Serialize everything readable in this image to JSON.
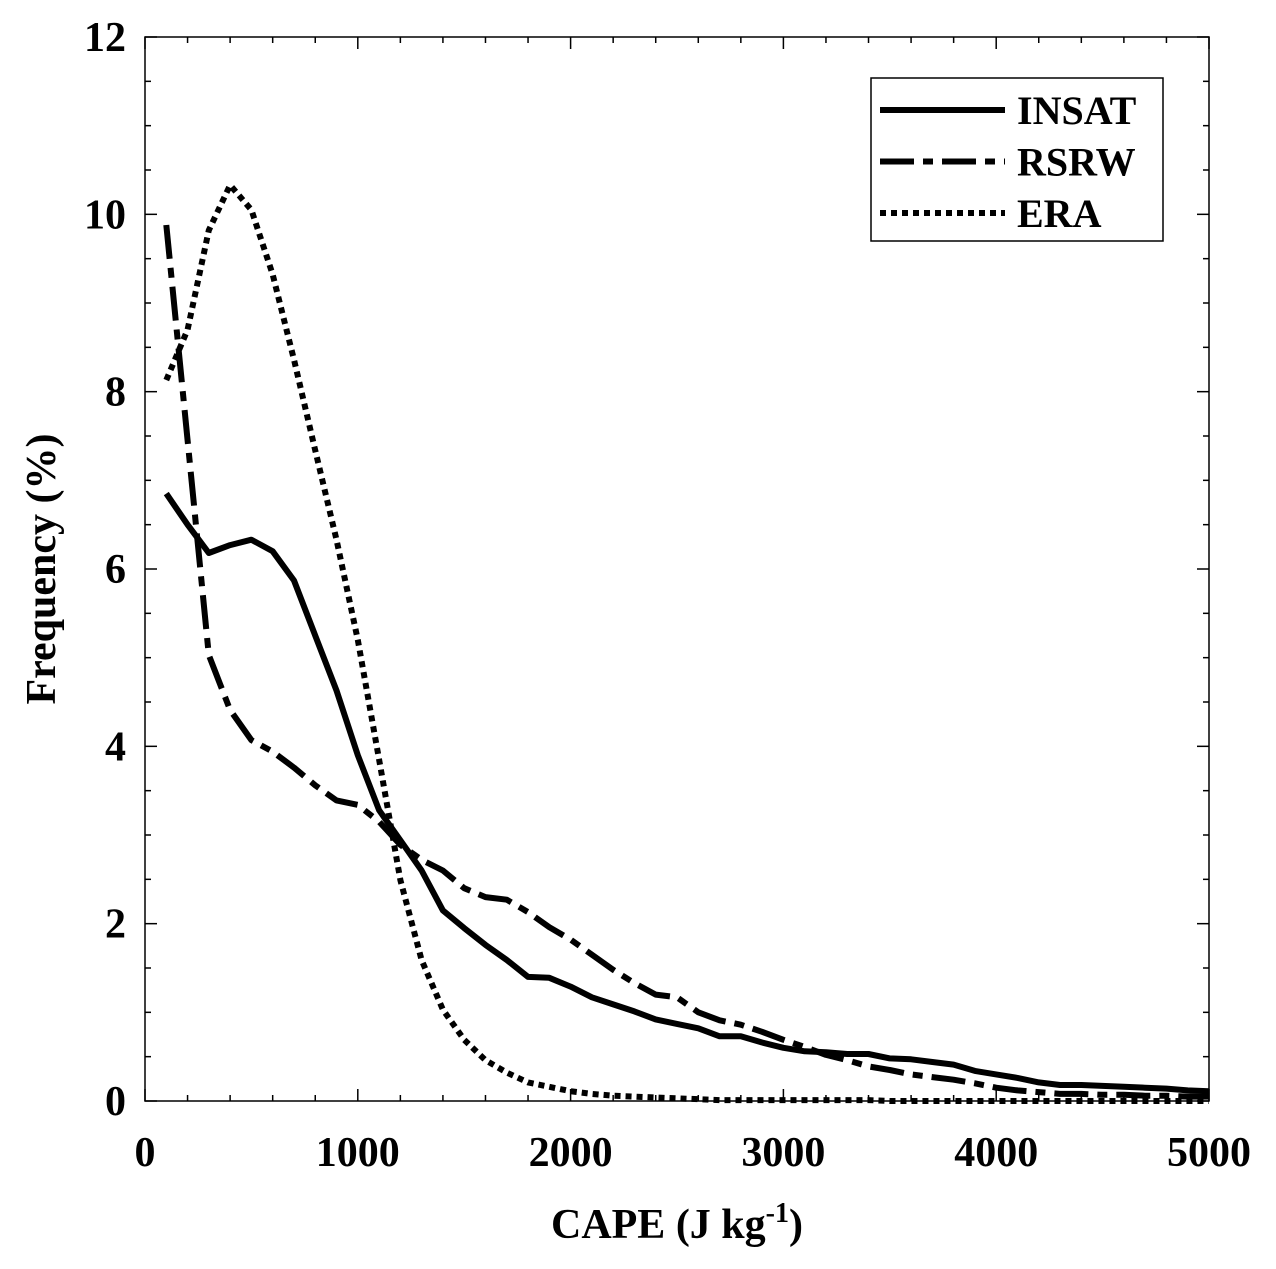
{
  "chart_data": {
    "type": "line",
    "title": "",
    "xlabel": "CAPE (J kg",
    "xlabel_sup": "-1",
    "xlabel_end": ")",
    "ylabel": "Frequency (%)",
    "xlim": [
      0,
      5000
    ],
    "ylim": [
      0,
      12
    ],
    "xticks": [
      0,
      1000,
      2000,
      3000,
      4000,
      5000
    ],
    "yticks": [
      0,
      2,
      4,
      6,
      8,
      10,
      12
    ],
    "grid": false,
    "legend_placement": "top-right",
    "x": [
      100,
      200,
      300,
      400,
      500,
      600,
      700,
      800,
      900,
      1000,
      1100,
      1200,
      1300,
      1400,
      1500,
      1600,
      1700,
      1800,
      1900,
      2000,
      2100,
      2200,
      2300,
      2400,
      2500,
      2600,
      2700,
      2800,
      2900,
      3000,
      3100,
      3200,
      3300,
      3400,
      3500,
      3600,
      3700,
      3800,
      3900,
      4000,
      4100,
      4200,
      4300,
      4400,
      4500,
      4600,
      4700,
      4800,
      4900,
      5000
    ],
    "series": [
      {
        "name": "INSAT",
        "style": "solid",
        "color": "#000000",
        "values": [
          6.85,
          6.5,
          6.18,
          6.27,
          6.33,
          6.2,
          5.87,
          5.25,
          4.63,
          3.9,
          3.28,
          2.94,
          2.6,
          2.15,
          1.95,
          1.76,
          1.59,
          1.4,
          1.39,
          1.29,
          1.17,
          1.09,
          1.01,
          0.92,
          0.87,
          0.82,
          0.73,
          0.73,
          0.66,
          0.6,
          0.56,
          0.55,
          0.53,
          0.53,
          0.48,
          0.47,
          0.44,
          0.41,
          0.34,
          0.3,
          0.26,
          0.21,
          0.18,
          0.18,
          0.17,
          0.16,
          0.15,
          0.14,
          0.12,
          0.11
        ]
      },
      {
        "name": "RSRW",
        "style": "dash-dot",
        "color": "#000000",
        "values": [
          9.88,
          7.45,
          5.03,
          4.41,
          4.07,
          3.94,
          3.76,
          3.56,
          3.39,
          3.34,
          3.15,
          2.89,
          2.72,
          2.6,
          2.4,
          2.3,
          2.27,
          2.13,
          1.96,
          1.82,
          1.65,
          1.48,
          1.33,
          1.2,
          1.17,
          1.0,
          0.91,
          0.86,
          0.78,
          0.69,
          0.61,
          0.52,
          0.46,
          0.39,
          0.35,
          0.3,
          0.27,
          0.24,
          0.2,
          0.15,
          0.12,
          0.1,
          0.08,
          0.08,
          0.07,
          0.07,
          0.06,
          0.06,
          0.05,
          0.05
        ]
      },
      {
        "name": "ERA",
        "style": "dotted",
        "color": "#000000",
        "values": [
          8.13,
          8.7,
          9.82,
          10.33,
          10.05,
          9.32,
          8.36,
          7.34,
          6.33,
          5.2,
          3.85,
          2.49,
          1.59,
          1.03,
          0.69,
          0.46,
          0.32,
          0.21,
          0.16,
          0.11,
          0.08,
          0.06,
          0.05,
          0.04,
          0.03,
          0.02,
          0.01,
          0.01,
          0.01,
          0.01,
          0.01,
          0.01,
          0.01,
          0.01,
          0,
          0,
          0,
          0,
          0,
          0,
          0,
          0,
          0,
          0,
          0,
          0,
          0,
          0,
          0,
          0
        ]
      }
    ]
  }
}
